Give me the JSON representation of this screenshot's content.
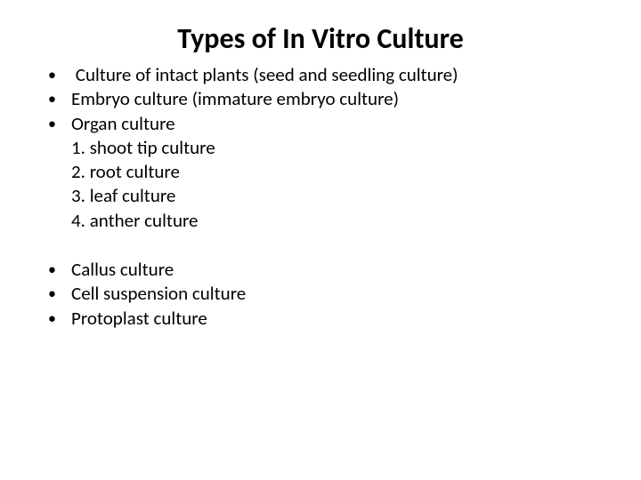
{
  "title": "Types of In Vitro Culture",
  "group1": {
    "b1": "Culture of intact plants (seed and seedling culture)",
    "b2": "Embryo culture (immature embryo culture)",
    "b3": "Organ culture",
    "sub": {
      "s1": "1. shoot tip culture",
      "s2": "2. root culture",
      "s3": "3. leaf culture",
      "s4": "4. anther culture"
    }
  },
  "group2": {
    "b1": "Callus culture",
    "b2": "Cell suspension culture",
    "b3": "Protoplast culture"
  },
  "style": {
    "background_color": "#ffffff",
    "text_color": "#000000",
    "title_fontsize_pt": 32,
    "body_fontsize_pt": 21,
    "font_family": "Calibri",
    "bullet_glyph": "•"
  }
}
